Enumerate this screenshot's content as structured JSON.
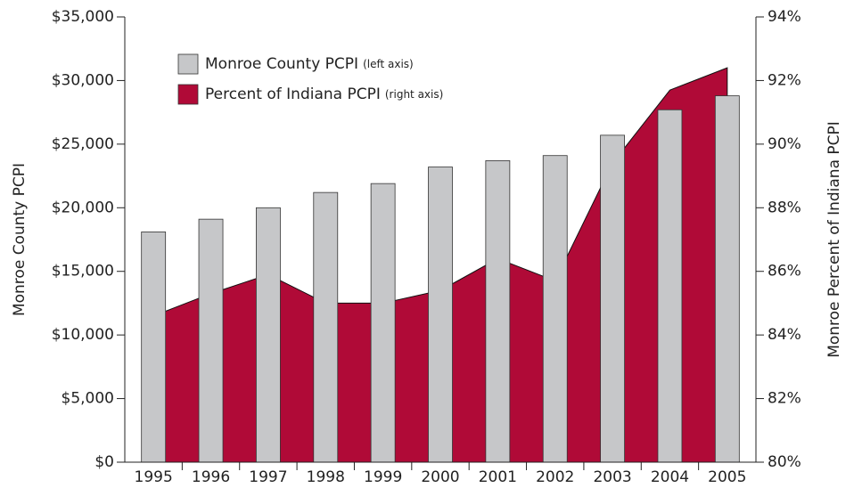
{
  "chart_data": {
    "type": "bar_area",
    "categories": [
      "1995",
      "1996",
      "1997",
      "1998",
      "1999",
      "2000",
      "2001",
      "2002",
      "2003",
      "2004",
      "2005"
    ],
    "series": [
      {
        "name": "Monroe County PCPI",
        "axis_note": "(left axis)",
        "type": "bar",
        "color": "#c6c7c9",
        "axis": "y",
        "values": [
          18100,
          19100,
          20000,
          21200,
          21900,
          23200,
          23700,
          24100,
          25700,
          27700,
          28800
        ]
      },
      {
        "name": "Percent of Indiana PCPI",
        "axis_note": "(right axis)",
        "type": "area",
        "color": "#b00a37",
        "axis": "y2",
        "values": [
          84.6,
          85.3,
          85.9,
          85.0,
          85.0,
          85.4,
          86.4,
          85.7,
          89.4,
          91.7,
          92.4
        ]
      }
    ],
    "ylabel": "Monroe County PCPI",
    "y2label": "Monroe Percent of Indiana PCPI",
    "ylim": [
      0,
      35000
    ],
    "yticks": [
      {
        "value": 0,
        "label": "$0"
      },
      {
        "value": 5000,
        "label": "$5,000"
      },
      {
        "value": 10000,
        "label": "$10,000"
      },
      {
        "value": 15000,
        "label": "$15,000"
      },
      {
        "value": 20000,
        "label": "$20,000"
      },
      {
        "value": 25000,
        "label": "$25,000"
      },
      {
        "value": 30000,
        "label": "$30,000"
      },
      {
        "value": 35000,
        "label": "$35,000"
      }
    ],
    "y2lim": [
      80,
      94
    ],
    "y2ticks": [
      {
        "value": 80,
        "label": "80%"
      },
      {
        "value": 82,
        "label": "82%"
      },
      {
        "value": 84,
        "label": "84%"
      },
      {
        "value": 86,
        "label": "86%"
      },
      {
        "value": 88,
        "label": "88%"
      },
      {
        "value": 90,
        "label": "90%"
      },
      {
        "value": 92,
        "label": "92%"
      },
      {
        "value": 94,
        "label": "94%"
      }
    ],
    "grid": false,
    "legend": "upper left"
  }
}
